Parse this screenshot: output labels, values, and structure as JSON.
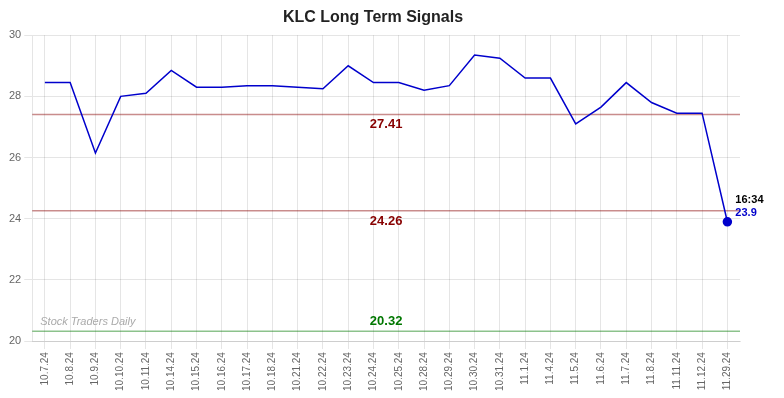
{
  "chart_data": {
    "type": "line",
    "title": "KLC Long Term Signals",
    "categories": [
      "10.7.24",
      "10.8.24",
      "10.9.24",
      "10.10.24",
      "10.11.24",
      "10.14.24",
      "10.15.24",
      "10.16.24",
      "10.17.24",
      "10.18.24",
      "10.21.24",
      "10.22.24",
      "10.23.24",
      "10.24.24",
      "10.25.24",
      "10.28.24",
      "10.29.24",
      "10.30.24",
      "10.31.24",
      "11.1.24",
      "11.4.24",
      "11.5.24",
      "11.6.24",
      "11.7.24",
      "11.8.24",
      "11.11.24",
      "11.12.24",
      "11.29.24"
    ],
    "values": [
      28.45,
      28.45,
      26.15,
      28.0,
      28.1,
      28.85,
      28.3,
      28.3,
      28.35,
      28.35,
      28.3,
      28.25,
      29.0,
      28.45,
      28.45,
      28.2,
      28.35,
      29.35,
      29.25,
      28.6,
      28.6,
      27.1,
      27.65,
      28.45,
      27.8,
      27.45,
      27.45,
      23.9
    ],
    "color": "#0000cc",
    "hlines": [
      {
        "value": 27.41,
        "label": "27.41",
        "color": "#880000"
      },
      {
        "value": 24.26,
        "label": "24.26",
        "color": "#880000"
      },
      {
        "value": 20.32,
        "label": "20.32",
        "color": "#007700"
      }
    ],
    "annotations": [
      "16:34",
      "23.9",
      "Stock Traders Daily"
    ],
    "ylim": [
      20,
      30
    ],
    "yticks": [
      20,
      22,
      24,
      26,
      28,
      30
    ],
    "grid": true
  }
}
